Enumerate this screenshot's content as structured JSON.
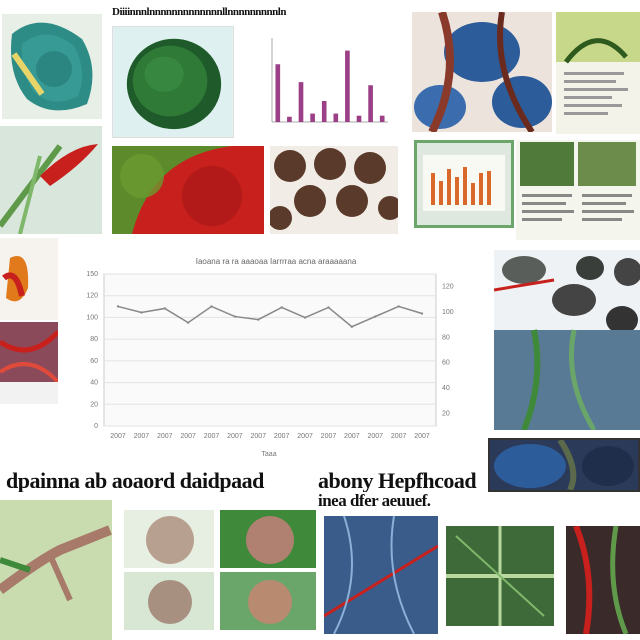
{
  "collage": {
    "top_banner_text": "Diiiinnnlnnnnnnnnnnnnnllnnnnnnnnnln",
    "caption_line_1": "dpainna ab aoaord daidpaad",
    "caption_line_2": "abony Hepfhcoad",
    "caption_line_3": "inea dfer aeuuef.",
    "colors": {
      "accent_red": "#c8201c",
      "leaf_green": "#3f8a3a",
      "deep_blue": "#2c5c9a",
      "chart_line": "#888888",
      "bar_purple": "#9b3f86"
    },
    "tile_icons": [
      "leaf-cross-section-image",
      "bean-seed-image",
      "bar-chart-thumbnail",
      "blue-roots-image",
      "plant-document-image",
      "red-flower-image",
      "red-leaf-texture-image",
      "brown-cells-image",
      "monitor-chart-image",
      "document-photos-image",
      "orange-flower-image",
      "red-fibers-image",
      "root-grid-image",
      "blue-tuber-image",
      "green-branch-image",
      "seed-quad-image",
      "blue-vein-image",
      "green-vein-image",
      "red-stem-image"
    ]
  },
  "chart_data": {
    "type": "line",
    "title": "Iaoana ra ra aaaoaa Iarrrraa acna araaaaana",
    "xlabel": "Taaa",
    "ylabel": "",
    "categories": [
      "2007",
      "2007",
      "2007",
      "2007",
      "2007",
      "2007",
      "2007",
      "2007",
      "2007",
      "2007",
      "2007",
      "2007",
      "2007",
      "2007"
    ],
    "y_ticks": [
      "0",
      "20",
      "40",
      "60",
      "80",
      "100",
      "120",
      "150"
    ],
    "right_ticks": [
      "120",
      "100",
      "80",
      "60",
      "40",
      "20"
    ],
    "ylim": [
      0,
      150
    ],
    "values": [
      118,
      112,
      116,
      102,
      118,
      108,
      105,
      117,
      107,
      117,
      98,
      108,
      118,
      111
    ],
    "grid": true
  },
  "mini_bar_chart": {
    "type": "bar",
    "values": [
      55,
      5,
      38,
      8,
      20,
      8,
      68,
      6,
      35,
      6
    ],
    "ylim": [
      0,
      80
    ]
  }
}
